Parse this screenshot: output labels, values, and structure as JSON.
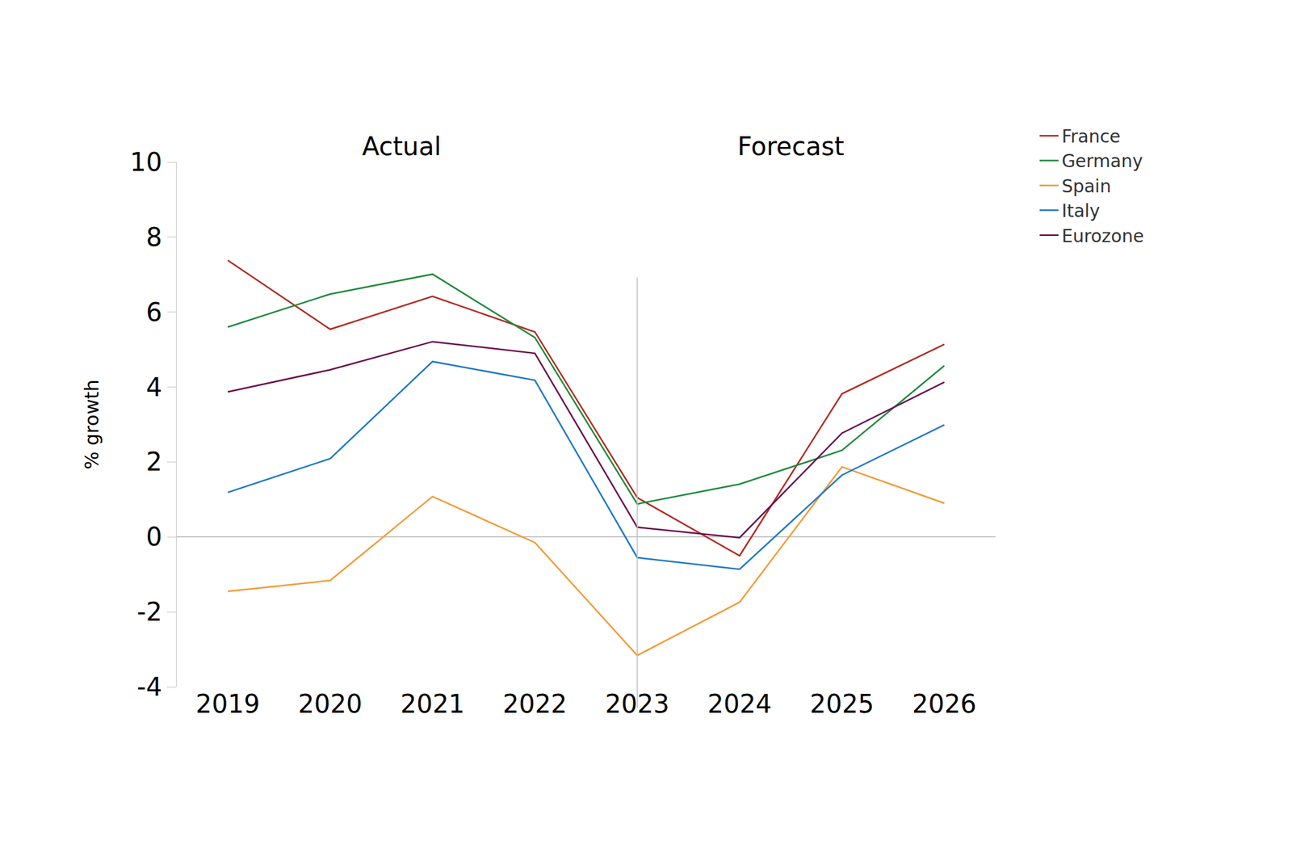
{
  "chart_data": {
    "type": "line",
    "y_label": "% growth",
    "annotations": [
      "Actual",
      "Forecast"
    ],
    "categories": [
      "2019",
      "2020",
      "2021",
      "2022",
      "2023",
      "2024",
      "2025",
      "2026"
    ],
    "series": [
      {
        "name": "France",
        "color": "#b22a22",
        "values": [
          7.38,
          5.54,
          6.42,
          5.47,
          1.05,
          -0.5,
          3.82,
          5.14
        ]
      },
      {
        "name": "Germany",
        "color": "#1f8a3a",
        "values": [
          5.6,
          6.48,
          7.01,
          5.32,
          0.88,
          1.41,
          2.31,
          4.57
        ]
      },
      {
        "name": "Spain",
        "color": "#f39a36",
        "values": [
          -1.45,
          -1.16,
          1.08,
          -0.15,
          -3.16,
          -1.74,
          1.87,
          0.9
        ]
      },
      {
        "name": "Italy",
        "color": "#1f78c8",
        "values": [
          1.19,
          2.09,
          4.68,
          4.18,
          -0.55,
          -0.86,
          1.65,
          2.99
        ]
      },
      {
        "name": "Eurozone",
        "color": "#6a0e4f",
        "values": [
          3.87,
          4.46,
          5.21,
          4.9,
          0.26,
          -0.02,
          2.77,
          4.13
        ]
      }
    ],
    "ylim": [
      -4,
      10
    ],
    "yticks": [
      -4,
      -2,
      0,
      2,
      4,
      6,
      8,
      10
    ],
    "grid": false,
    "legend": "right"
  }
}
